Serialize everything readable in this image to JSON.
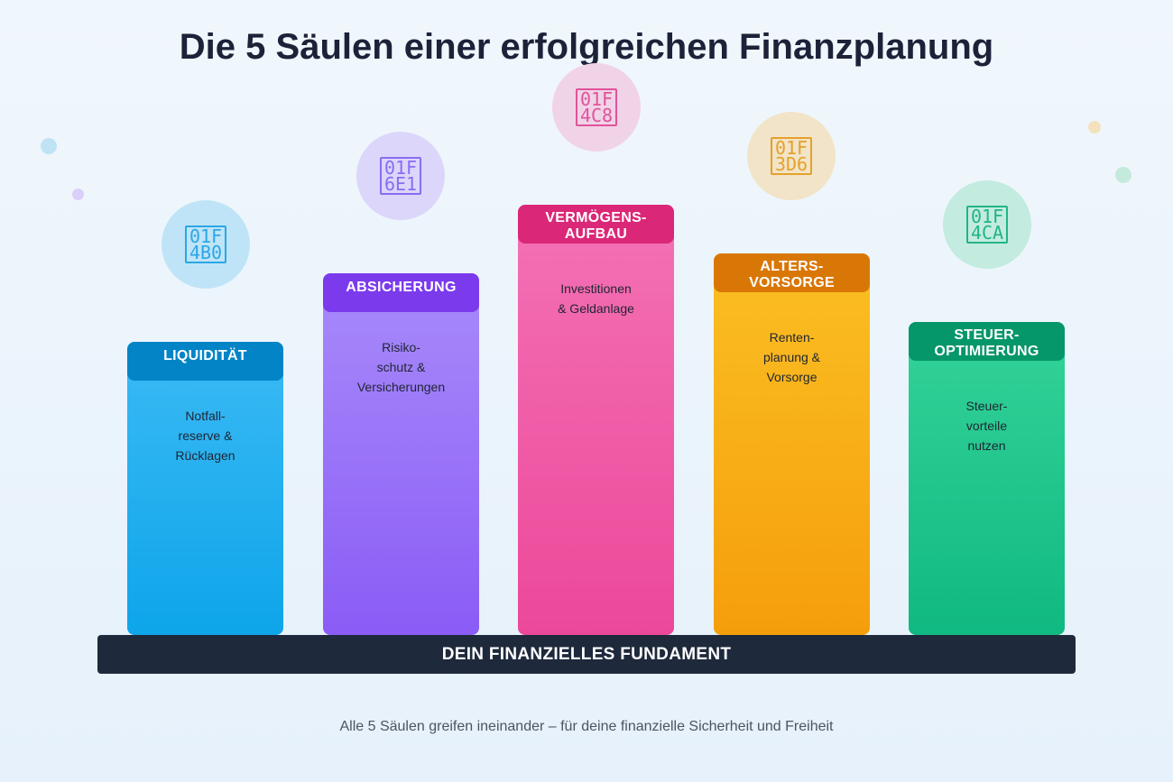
{
  "title": "Die 5 Säulen einer erfolgreichen Finanzplanung",
  "pillars": [
    {
      "head": [
        "LIQUIDITÄT"
      ],
      "desc": [
        "Notfall-",
        "reserve &",
        "Rücklagen"
      ],
      "icon": "money-bag-icon",
      "glyph": "01F\n4B0",
      "colors": {
        "top": "#3bbaf5",
        "bottom": "#0ea5e9",
        "head": "#0284c7",
        "circle": "#bfe4f7",
        "glyph": "#2aa7e6"
      }
    },
    {
      "head": [
        "ABSICHERUNG"
      ],
      "desc": [
        "Risiko-",
        "schutz &",
        "Versicherungen"
      ],
      "icon": "shield-icon",
      "glyph": "01F\n6E1",
      "colors": {
        "top": "#a88bfa",
        "bottom": "#8b5cf6",
        "head": "#7c3aed",
        "circle": "#dcd6fb",
        "glyph": "#8b6cf0"
      }
    },
    {
      "head": [
        "VERMÖGENS-",
        "AUFBAU"
      ],
      "desc": [
        "Investitionen",
        "& Geldanlage"
      ],
      "icon": "chart-icon",
      "glyph": "01F\n4C8",
      "colors": {
        "top": "#f472b6",
        "bottom": "#ec4899",
        "head": "#db2777",
        "circle": "#f1d3e7",
        "glyph": "#e0539b"
      }
    },
    {
      "head": [
        "ALTERS-",
        "VORSORGE"
      ],
      "desc": [
        "Renten-",
        "planung &",
        "Vorsorge"
      ],
      "icon": "house-icon",
      "glyph": "01F\n3D6",
      "colors": {
        "top": "#fbbf24",
        "bottom": "#f59e0b",
        "head": "#d97706",
        "circle": "#f2e4c8",
        "glyph": "#e5a12a"
      }
    },
    {
      "head": [
        "STEUER-",
        "OPTIMIERUNG"
      ],
      "desc": [
        "Steuer-",
        "vorteile",
        "nutzen"
      ],
      "icon": "bar-chart-icon",
      "glyph": "01F\n4CA",
      "colors": {
        "top": "#34d399",
        "bottom": "#10b981",
        "head": "#059669",
        "circle": "#c3ebdf",
        "glyph": "#22b584"
      }
    }
  ],
  "foundation": "DEIN FINANZIELLES FUNDAMENT",
  "footer": "Alle 5 Säulen greifen ineinander – für deine finanzielle Sicherheit und Freiheit"
}
